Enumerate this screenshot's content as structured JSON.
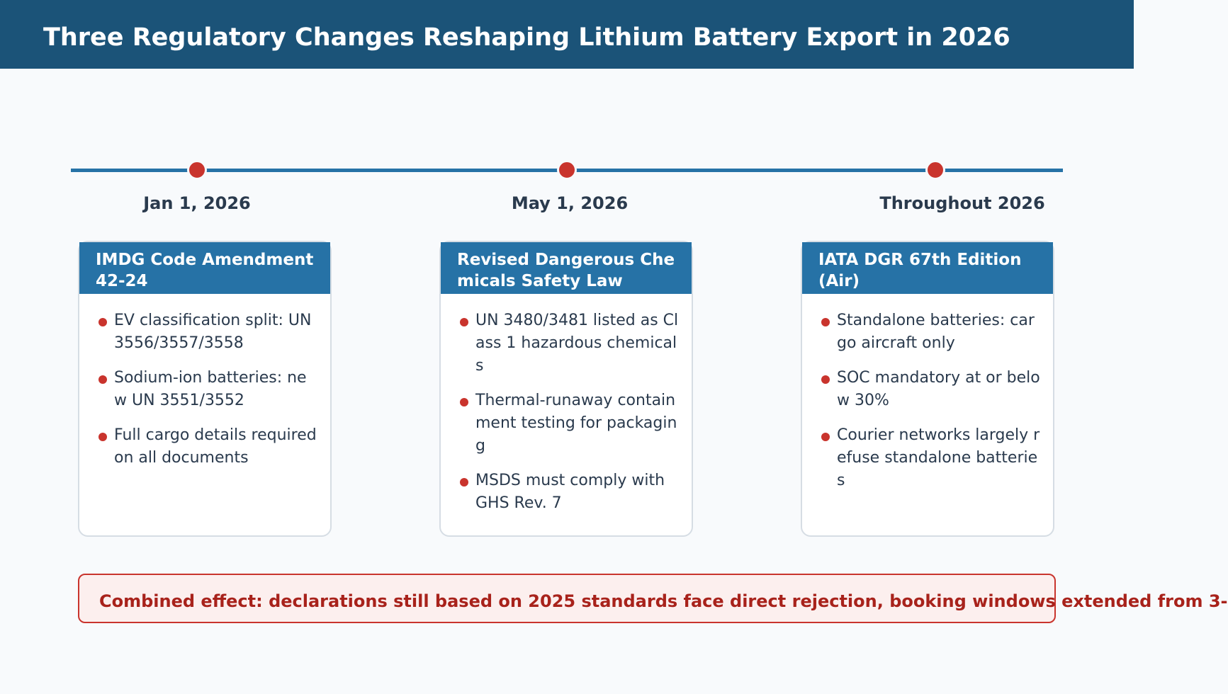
{
  "header": {
    "title": "Three Regulatory Changes Reshaping Lithium Battery Export in 2026"
  },
  "milestones": [
    {
      "date": "Jan 1, 2026"
    },
    {
      "date": "May 1, 2026"
    },
    {
      "date": "Throughout 2026"
    }
  ],
  "cards": [
    {
      "title": "IMDG Code Amendment 42-24",
      "items": [
        "EV classification split: UN 3556/3557/3558",
        "Sodium-ion batteries: new UN 3551/3552",
        "Full cargo details required on all documents"
      ]
    },
    {
      "title": "Revised Dangerous Chemicals Safety Law",
      "items": [
        "UN 3480/3481 listed as Class 1 hazardous chemicals",
        "Thermal-runaway containment testing for packaging",
        "MSDS must comply with GHS Rev. 7"
      ]
    },
    {
      "title": "IATA DGR 67th Edition (Air)",
      "items": [
        "Standalone batteries: cargo aircraft only",
        "SOC mandatory at or below 30%",
        "Courier networks largely refuse standalone batteries"
      ]
    }
  ],
  "summary": {
    "text": "Combined effect: declarations still based on 2025 standards face direct rejection, booking windows extended from 3-"
  },
  "colors": {
    "header_bg": "#1b5378",
    "accent_blue": "#2672a6",
    "accent_red": "#c9342d",
    "summary_text": "#a8221b"
  }
}
